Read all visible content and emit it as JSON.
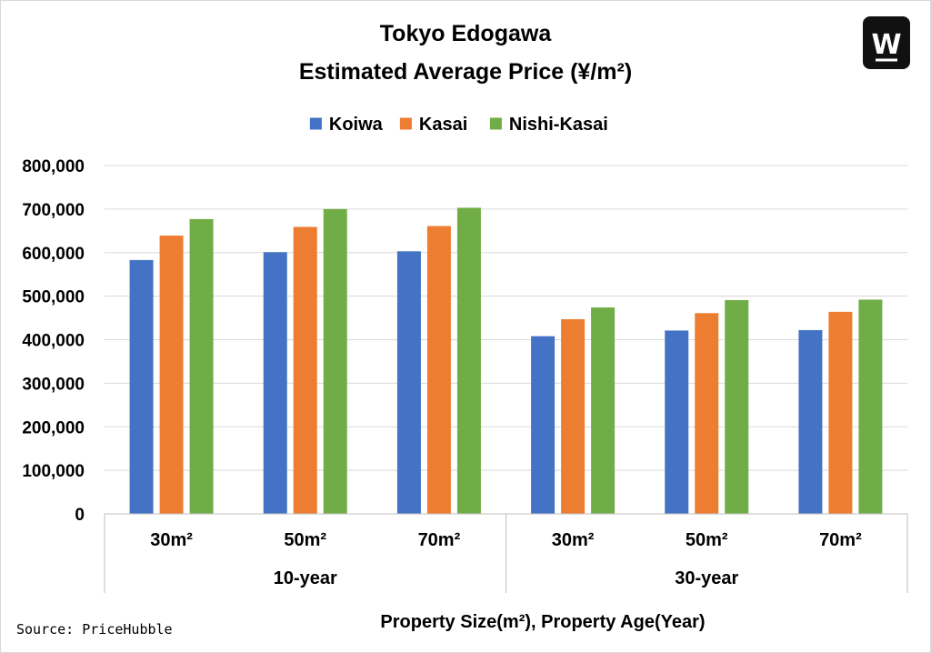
{
  "logo": {
    "icon": "w-logo-icon",
    "glyph": "W"
  },
  "source": "Source: PriceHubble",
  "chart_data": {
    "type": "bar",
    "title": "Tokyo Edogawa",
    "subtitle": "Estimated Average Price (¥/m²)",
    "categories": [
      "30m²",
      "50m²",
      "70m²",
      "30m²",
      "50m²",
      "70m²"
    ],
    "groups": [
      {
        "label": "10-year",
        "categories": [
          "30m²",
          "50m²",
          "70m²"
        ]
      },
      {
        "label": "30-year",
        "categories": [
          "30m²",
          "50m²",
          "70m²"
        ]
      }
    ],
    "series": [
      {
        "name": "Koiwa",
        "color": "#4472C4",
        "values": [
          583000,
          601000,
          603000,
          408000,
          421000,
          422000
        ]
      },
      {
        "name": "Kasai",
        "color": "#ED7D31",
        "values": [
          639000,
          659000,
          661000,
          447000,
          461000,
          464000
        ]
      },
      {
        "name": "Nishi-Kasai",
        "color": "#70AD47",
        "values": [
          677000,
          700000,
          703000,
          474000,
          491000,
          492000
        ]
      }
    ],
    "ylim": [
      0,
      800000
    ],
    "yticks": [
      0,
      100000,
      200000,
      300000,
      400000,
      500000,
      600000,
      700000,
      800000
    ],
    "ytick_labels": [
      "0",
      "100,000",
      "200,000",
      "300,000",
      "400,000",
      "500,000",
      "600,000",
      "700,000",
      "800,000"
    ],
    "xlabel": "Property Size(m²), Property Age(Year)",
    "ylabel": "",
    "grid": true,
    "legend_position": "top"
  }
}
